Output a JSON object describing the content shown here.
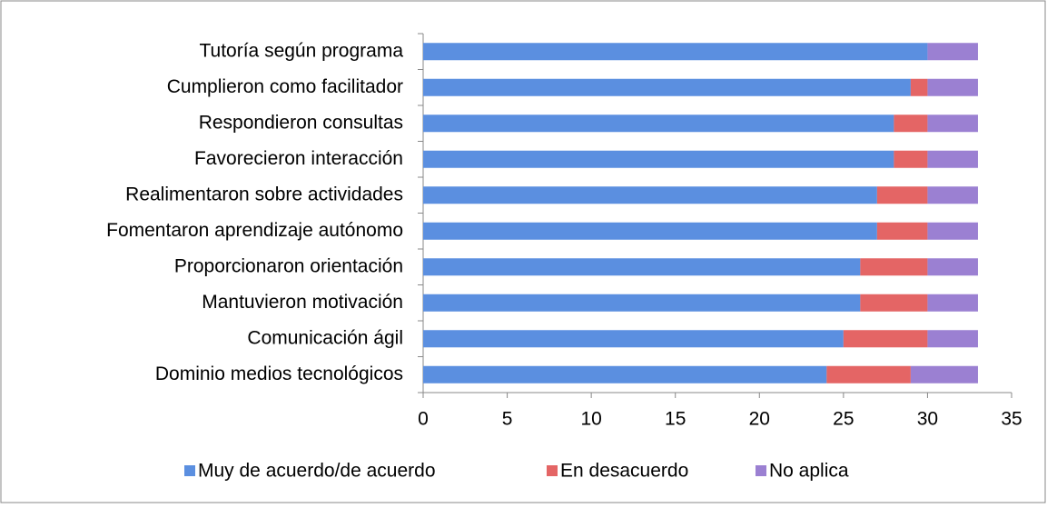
{
  "chart_data": {
    "type": "stacked-bar-horizontal",
    "categories": [
      "Tutoría según programa",
      "Cumplieron como facilitador",
      "Respondieron consultas",
      "Favorecieron interacción",
      "Realimentaron sobre actividades",
      "Fomentaron  aprendizaje autónomo",
      "Proporcionaron orientación",
      "Mantuvieron motivación",
      "Comunicación ágil",
      "Dominio medios tecnológicos"
    ],
    "series": [
      {
        "name": "Muy de acuerdo/de acuerdo",
        "color": "#5b8fe0",
        "values": [
          30,
          29,
          28,
          28,
          27,
          27,
          26,
          26,
          25,
          24
        ]
      },
      {
        "name": "En desacuerdo",
        "color": "#e46565",
        "values": [
          0,
          1,
          2,
          2,
          3,
          3,
          4,
          4,
          5,
          5
        ]
      },
      {
        "name": "No aplica",
        "color": "#9b80d2",
        "values": [
          3,
          3,
          3,
          3,
          3,
          3,
          3,
          3,
          3,
          4
        ]
      }
    ],
    "xlim": [
      0,
      35
    ],
    "xticks": [
      0,
      5,
      10,
      15,
      20,
      25,
      30,
      35
    ],
    "legend": "bottom"
  }
}
